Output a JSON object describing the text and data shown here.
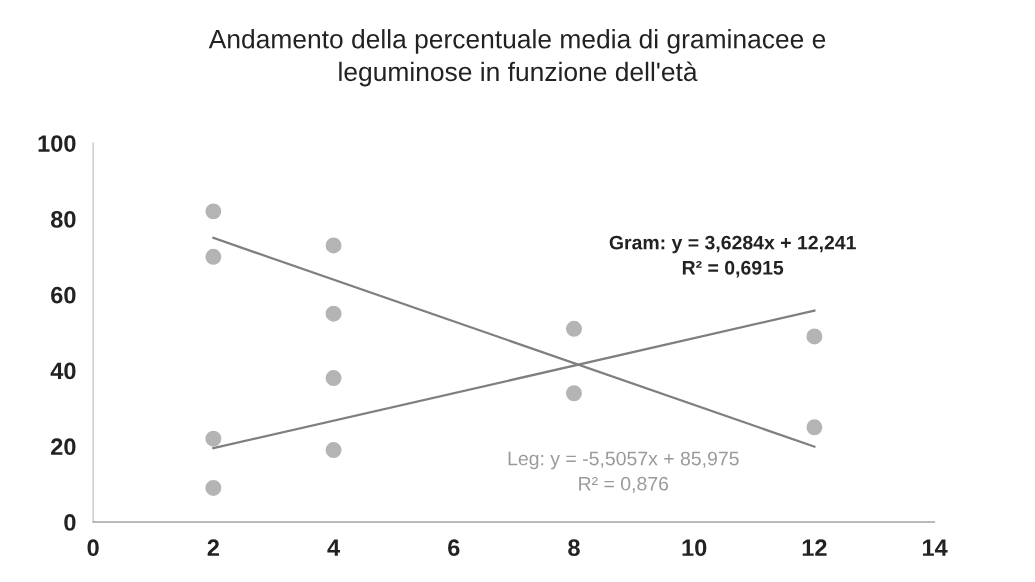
{
  "chart_data": {
    "type": "scatter",
    "title": "Andamento della percentuale media di graminacee e\nleguminose in funzione dell'età",
    "series": [
      {
        "color": "#b4b4b4",
        "x": [
          2,
          2,
          4,
          4,
          8,
          12
        ],
        "values": [
          22,
          9,
          38,
          19,
          51,
          49
        ]
      },
      {
        "color": "#b4b4b4",
        "x": [
          2,
          2,
          4,
          4,
          8,
          12
        ],
        "values": [
          82,
          70,
          73,
          55,
          34,
          25
        ]
      },
      {
        "type": "line",
        "marker": "none",
        "color": "#7f7f7f",
        "x": [
          2,
          12
        ],
        "values": [
          19.5,
          55.8
        ]
      },
      {
        "type": "line",
        "marker": "none",
        "color": "#7f7f7f",
        "x": [
          2,
          12
        ],
        "values": [
          75.0,
          19.9
        ]
      }
    ],
    "annotations": [
      "Gram: y = 3,6284x + 12,241\nR² = 0,6915",
      "Leg: y = -5,5057x + 85,975\nR² = 0,876"
    ],
    "xlim": [
      0,
      14
    ],
    "xticks": [
      0,
      2,
      4,
      6,
      8,
      10,
      12,
      14
    ],
    "ylim": [
      0,
      100
    ],
    "yticks": [
      0,
      20,
      40,
      60,
      80,
      100
    ],
    "grid": false,
    "legend": false,
    "marker": "circle"
  }
}
